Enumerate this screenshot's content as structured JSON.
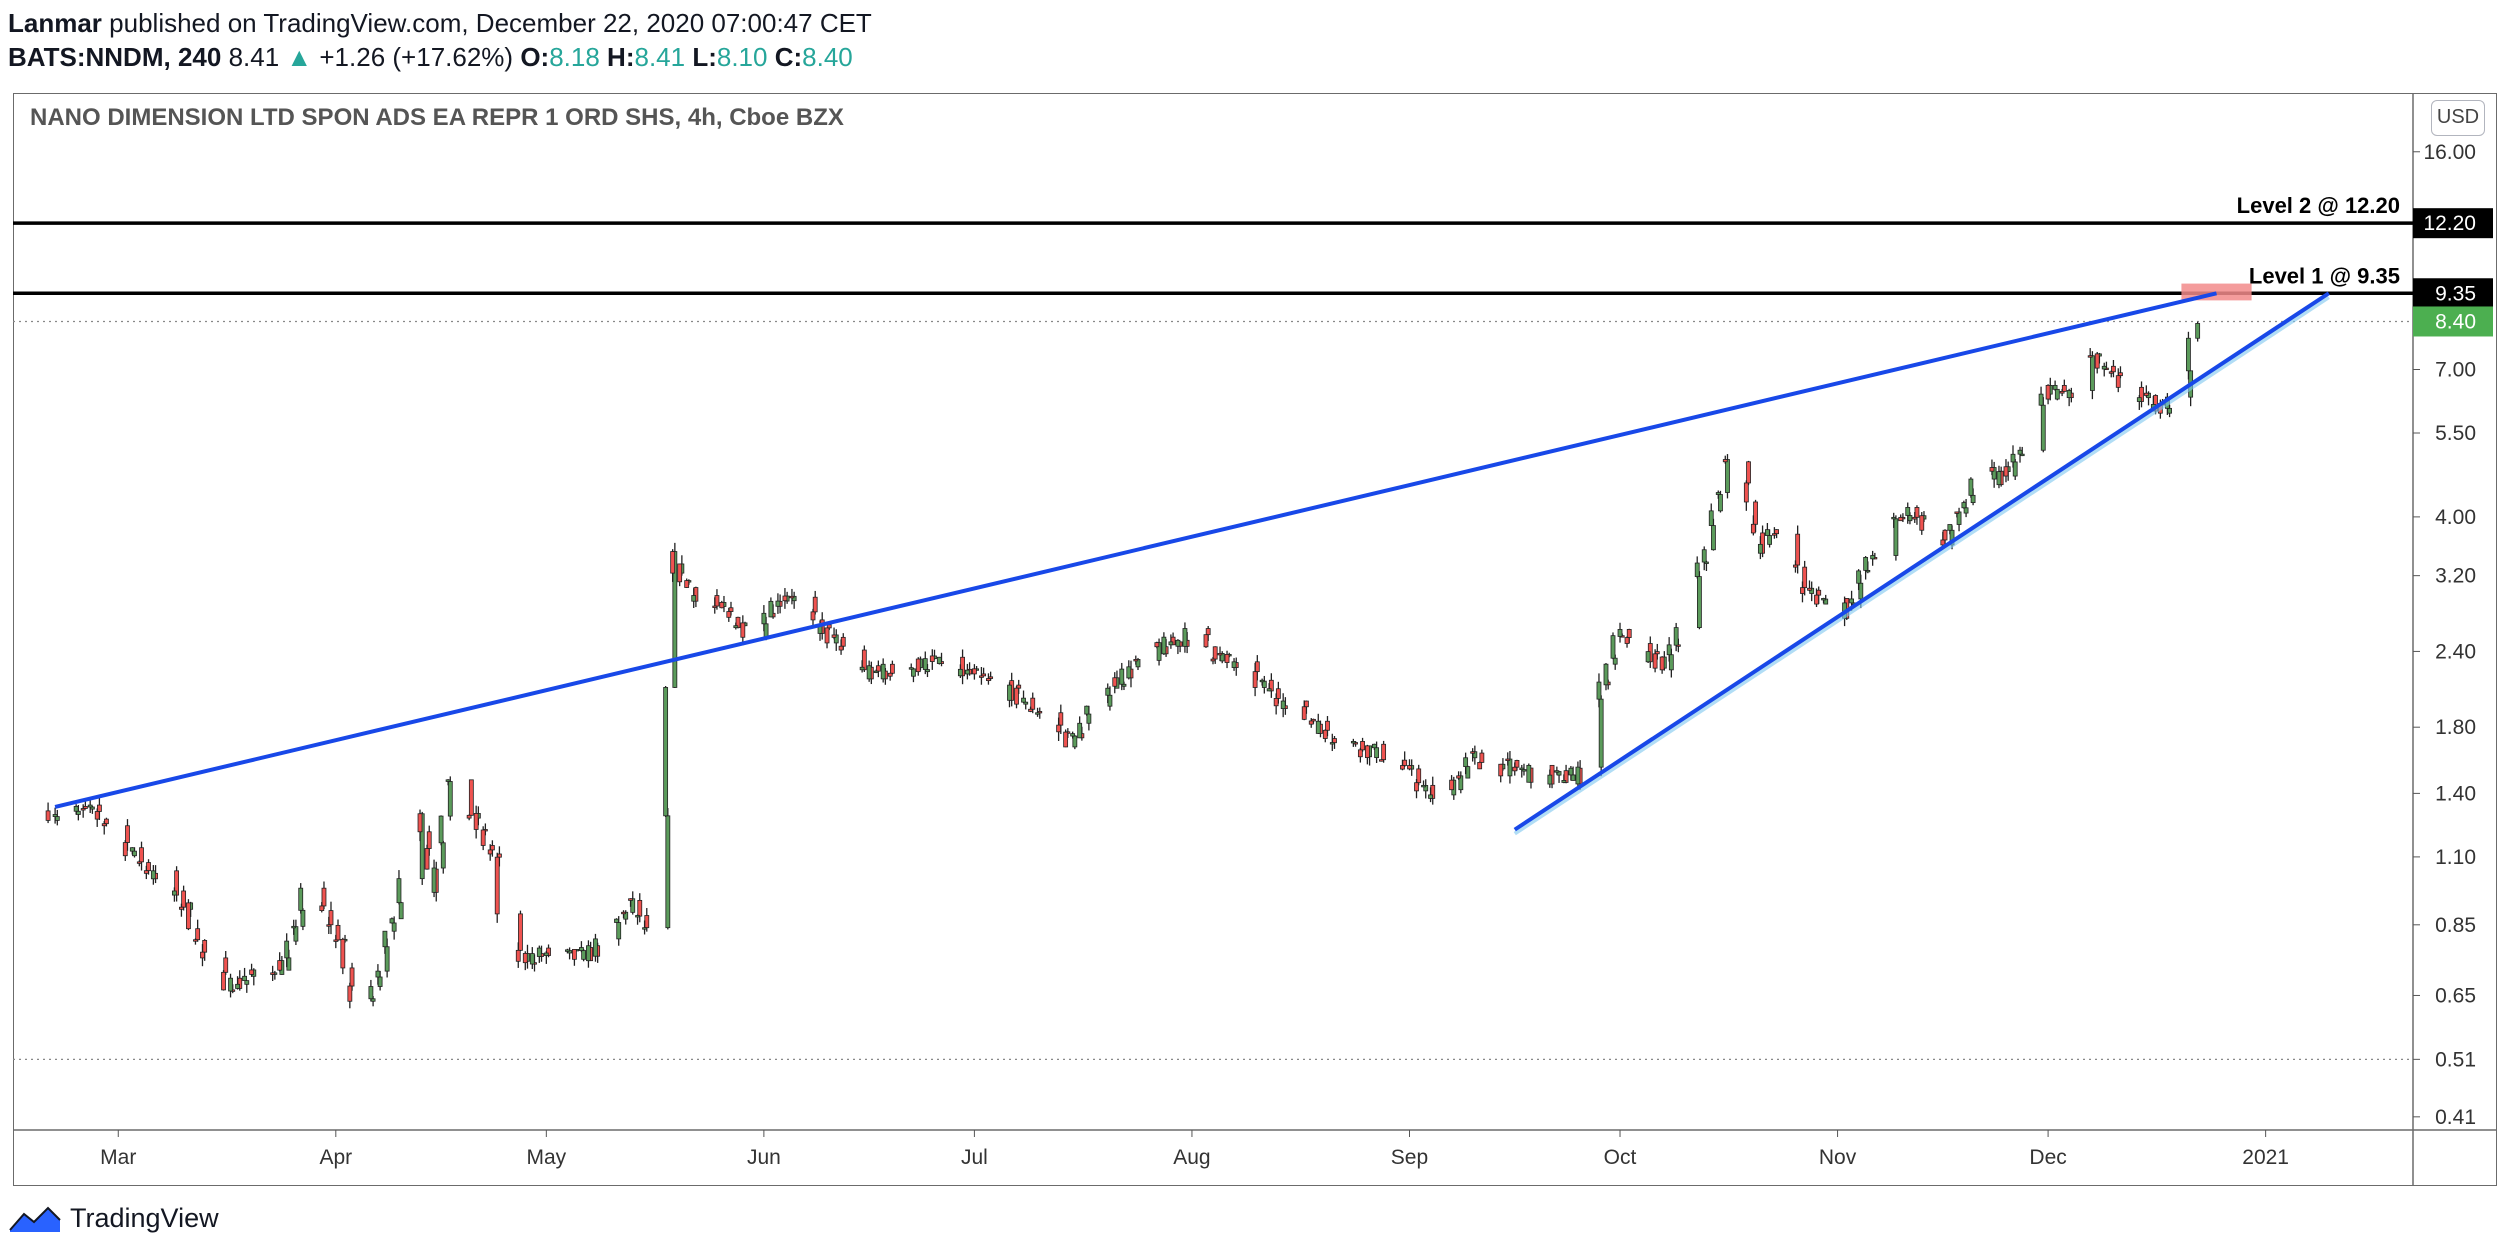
{
  "header": {
    "author": "Lanmar",
    "published": "published on TradingView.com, December 22, 2020 07:00:47 CET",
    "symbol": "BATS:NNDM, 240",
    "last": "8.41",
    "change_arrow": "▲",
    "change": "+1.26 (+17.62%)",
    "o_label": "O:",
    "o": "8.18",
    "h_label": "H:",
    "h": "8.41",
    "l_label": "L:",
    "l": "8.10",
    "c_label": "C:",
    "c": "8.40"
  },
  "pane_title": "NANO DIMENSION LTD SPON ADS EA REPR 1 ORD SHS, 4h, Cboe BZX",
  "currency_button": "USD",
  "footer": {
    "brand": "TradingView"
  },
  "colors": {
    "up": "#26a69a",
    "up_body": "#5b9b5b",
    "down": "#ef5350",
    "trendline": "#1848e8",
    "level": "#000000",
    "last_price_tag": "#4caf50",
    "target_box": "#f28b8b"
  },
  "chart_data": {
    "type": "candlestick",
    "title": "NANO DIMENSION LTD SPON ADS EA REPR 1 ORD SHS, 4h, Cboe BZX",
    "y_scale": "log",
    "ylim": [
      0.39,
      20
    ],
    "y_ticks": [
      "16.00",
      "12.20",
      "9.35",
      "8.40",
      "7.00",
      "5.50",
      "4.00",
      "3.20",
      "2.40",
      "1.80",
      "1.40",
      "1.10",
      "0.85",
      "0.65",
      "0.51",
      "0.41"
    ],
    "x_ticks": [
      "Mar",
      "Apr",
      "May",
      "Jun",
      "Jul",
      "Aug",
      "Sep",
      "Oct",
      "Nov",
      "Dec",
      "2021"
    ],
    "x_tick_dates": [
      "2020-03-01",
      "2020-04-01",
      "2020-05-01",
      "2020-06-01",
      "2020-07-01",
      "2020-08-01",
      "2020-09-01",
      "2020-10-01",
      "2020-11-01",
      "2020-12-01",
      "2021-01-01"
    ],
    "price_path": [
      {
        "date": "2020-02-20",
        "close": 1.31
      },
      {
        "date": "2020-02-27",
        "close": 1.3
      },
      {
        "date": "2020-03-05",
        "close": 1.06
      },
      {
        "date": "2020-03-11",
        "close": 0.9
      },
      {
        "date": "2020-03-14",
        "close": 0.7
      },
      {
        "date": "2020-03-18",
        "close": 0.68
      },
      {
        "date": "2020-03-25",
        "close": 0.74
      },
      {
        "date": "2020-03-28",
        "close": 1.0
      },
      {
        "date": "2020-04-02",
        "close": 0.78
      },
      {
        "date": "2020-04-04",
        "close": 0.58
      },
      {
        "date": "2020-04-08",
        "close": 0.76
      },
      {
        "date": "2020-04-13",
        "close": 1.33
      },
      {
        "date": "2020-04-15",
        "close": 0.98
      },
      {
        "date": "2020-04-17",
        "close": 1.45
      },
      {
        "date": "2020-04-21",
        "close": 1.26
      },
      {
        "date": "2020-04-24",
        "close": 1.07
      },
      {
        "date": "2020-04-25",
        "close": 0.74
      },
      {
        "date": "2020-05-01",
        "close": 0.76
      },
      {
        "date": "2020-05-06",
        "close": 0.75
      },
      {
        "date": "2020-05-10",
        "close": 0.8
      },
      {
        "date": "2020-05-13",
        "close": 0.93
      },
      {
        "date": "2020-05-17",
        "close": 0.76
      },
      {
        "date": "2020-05-18",
        "close": 1.25
      },
      {
        "date": "2020-05-19",
        "close": 3.4
      },
      {
        "date": "2020-05-22",
        "close": 3.0
      },
      {
        "date": "2020-05-26",
        "close": 2.8
      },
      {
        "date": "2020-05-30",
        "close": 2.6
      },
      {
        "date": "2020-06-04",
        "close": 3.0
      },
      {
        "date": "2020-06-08",
        "close": 2.7
      },
      {
        "date": "2020-06-16",
        "close": 2.2
      },
      {
        "date": "2020-06-25",
        "close": 2.3
      },
      {
        "date": "2020-07-05",
        "close": 2.1
      },
      {
        "date": "2020-07-12",
        "close": 1.85
      },
      {
        "date": "2020-07-15",
        "close": 1.7
      },
      {
        "date": "2020-07-20",
        "close": 2.1
      },
      {
        "date": "2020-07-27",
        "close": 2.4
      },
      {
        "date": "2020-08-02",
        "close": 2.6
      },
      {
        "date": "2020-08-04",
        "close": 2.4
      },
      {
        "date": "2020-08-14",
        "close": 2.0
      },
      {
        "date": "2020-08-22",
        "close": 1.72
      },
      {
        "date": "2020-08-30",
        "close": 1.6
      },
      {
        "date": "2020-09-05",
        "close": 1.35
      },
      {
        "date": "2020-09-10",
        "close": 1.6
      },
      {
        "date": "2020-09-21",
        "close": 1.48
      },
      {
        "date": "2020-09-25",
        "close": 1.5
      },
      {
        "date": "2020-09-28",
        "close": 2.0
      },
      {
        "date": "2020-10-01",
        "close": 2.6
      },
      {
        "date": "2020-10-03",
        "close": 2.35
      },
      {
        "date": "2020-10-08",
        "close": 2.3
      },
      {
        "date": "2020-10-13",
        "close": 3.4
      },
      {
        "date": "2020-10-17",
        "close": 5.4
      },
      {
        "date": "2020-10-21",
        "close": 3.6
      },
      {
        "date": "2020-10-25",
        "close": 3.9
      },
      {
        "date": "2020-10-27",
        "close": 3.05
      },
      {
        "date": "2020-11-02",
        "close": 2.8
      },
      {
        "date": "2020-11-08",
        "close": 3.8
      },
      {
        "date": "2020-11-12",
        "close": 4.1
      },
      {
        "date": "2020-11-16",
        "close": 3.6
      },
      {
        "date": "2020-11-22",
        "close": 4.8
      },
      {
        "date": "2020-11-24",
        "close": 4.6
      },
      {
        "date": "2020-11-28",
        "close": 5.2
      },
      {
        "date": "2020-12-01",
        "close": 6.5
      },
      {
        "date": "2020-12-05",
        "close": 6.3
      },
      {
        "date": "2020-12-07",
        "close": 7.4
      },
      {
        "date": "2020-12-10",
        "close": 6.8
      },
      {
        "date": "2020-12-14",
        "close": 6.3
      },
      {
        "date": "2020-12-17",
        "close": 6.0
      },
      {
        "date": "2020-12-21",
        "close": 7.1
      },
      {
        "date": "2020-12-22",
        "close": 8.4
      }
    ],
    "price_lines": [
      {
        "label": "Level 2 @ 12.20",
        "value": 12.2
      },
      {
        "label": "Level 1 @ 9.35",
        "value": 9.35
      }
    ],
    "last_price": {
      "value": 8.4,
      "label": "8.40"
    },
    "dotted_lines": [
      8.4,
      0.51
    ],
    "trend_lines": [
      {
        "from": {
          "date": "2020-02-21",
          "value": 1.33
        },
        "to": {
          "date": "2020-12-25",
          "value": 9.35
        }
      },
      {
        "from": {
          "date": "2020-09-16",
          "value": 1.22
        },
        "to": {
          "date": "2021-01-10",
          "value": 9.35
        }
      }
    ],
    "target_zone": {
      "from_date": "2020-12-20",
      "to_date": "2020-12-30",
      "low": 9.1,
      "high": 9.7
    },
    "grid": false,
    "legend": "none"
  }
}
